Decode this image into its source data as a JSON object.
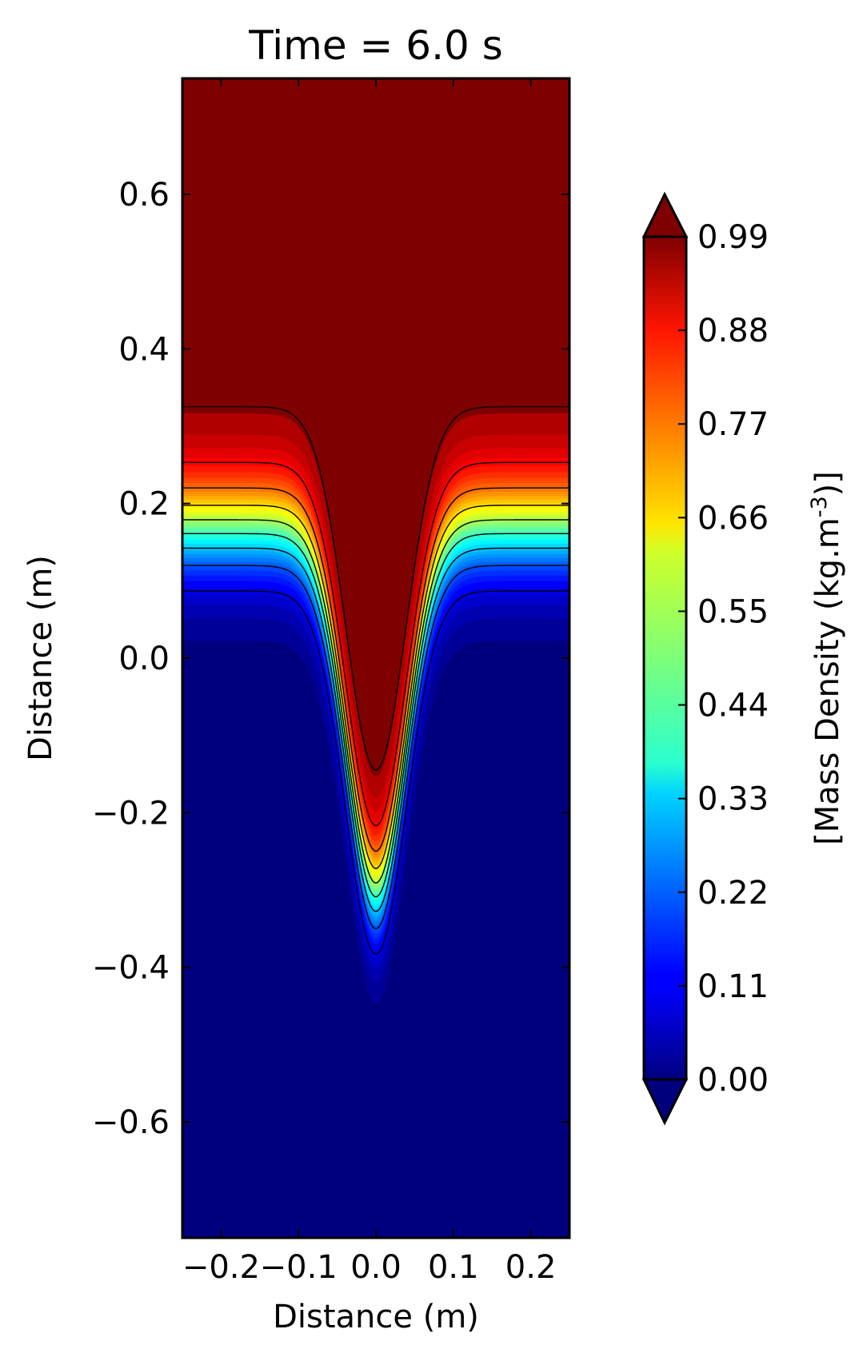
{
  "chart_data": {
    "type": "heatmap",
    "title": "Time = 6.0 s",
    "xlabel": "Distance (m)",
    "ylabel": "Distance (m)",
    "xlim": [
      -0.25,
      0.25
    ],
    "ylim": [
      -0.75,
      0.75
    ],
    "x_ticks": [
      -0.2,
      -0.1,
      0.0,
      0.1,
      0.2
    ],
    "x_tick_labels": [
      "−0.2",
      "−0.1",
      "0.0",
      "0.1",
      "0.2"
    ],
    "y_ticks": [
      -0.6,
      -0.4,
      -0.2,
      0.0,
      0.2,
      0.4,
      0.6
    ],
    "y_tick_labels": [
      "−0.6",
      "−0.4",
      "−0.2",
      "0.0",
      "0.2",
      "0.4",
      "0.6"
    ],
    "colormap": "jet",
    "colorbar": {
      "label_main": "[Mass Density (kg.m",
      "label_sup": "-3",
      "label_end": ")]",
      "ticks": [
        0.0,
        0.11,
        0.22,
        0.33,
        0.44,
        0.55,
        0.66,
        0.77,
        0.88,
        0.99
      ],
      "tick_labels": [
        "0.00",
        "0.11",
        "0.22",
        "0.33",
        "0.44",
        "0.55",
        "0.66",
        "0.77",
        "0.88",
        "0.99"
      ],
      "range": [
        0.0,
        0.99
      ],
      "extend": "both"
    },
    "field": {
      "upper_value": 0.99,
      "lower_value": 0.0,
      "interface_edge_y": 0.17,
      "interface_center_y": -0.3,
      "interface_width_x": 0.055,
      "transition_width_y": 0.08,
      "contour_levels": [
        0.11,
        0.22,
        0.33,
        0.44,
        0.55,
        0.66,
        0.77,
        0.88,
        0.97
      ]
    }
  }
}
